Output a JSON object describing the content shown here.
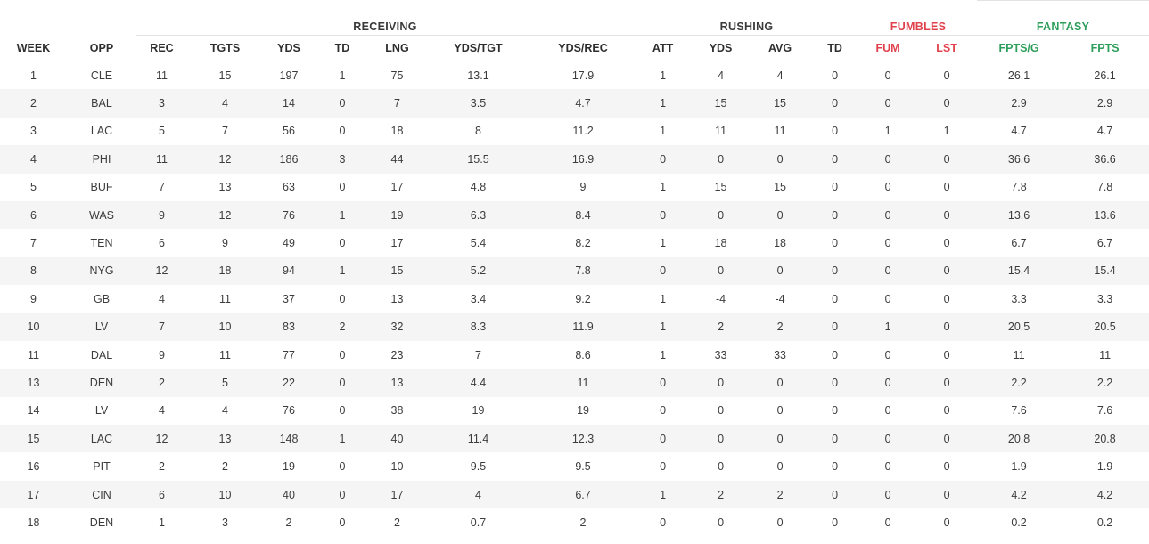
{
  "groups": {
    "receiving": "RECEIVING",
    "rushing": "RUSHING",
    "fumbles": "FUMBLES",
    "fantasy": "FANTASY"
  },
  "colors": {
    "fumbles": "#e0424d",
    "fantasy": "#2e9e5b",
    "text": "#3a3a3a",
    "stripe": "#f5f5f5"
  },
  "columns": [
    "WEEK",
    "OPP",
    "REC",
    "TGTS",
    "YDS",
    "TD",
    "LNG",
    "YDS/TGT",
    "YDS/REC",
    "ATT",
    "YDS",
    "AVG",
    "TD",
    "FUM",
    "LST",
    "FPTS/G",
    "FPTS"
  ],
  "rows": [
    [
      "1",
      "CLE",
      "11",
      "15",
      "197",
      "1",
      "75",
      "13.1",
      "17.9",
      "1",
      "4",
      "4",
      "0",
      "0",
      "0",
      "26.1",
      "26.1"
    ],
    [
      "2",
      "BAL",
      "3",
      "4",
      "14",
      "0",
      "7",
      "3.5",
      "4.7",
      "1",
      "15",
      "15",
      "0",
      "0",
      "0",
      "2.9",
      "2.9"
    ],
    [
      "3",
      "LAC",
      "5",
      "7",
      "56",
      "0",
      "18",
      "8",
      "11.2",
      "1",
      "11",
      "11",
      "0",
      "1",
      "1",
      "4.7",
      "4.7"
    ],
    [
      "4",
      "PHI",
      "11",
      "12",
      "186",
      "3",
      "44",
      "15.5",
      "16.9",
      "0",
      "0",
      "0",
      "0",
      "0",
      "0",
      "36.6",
      "36.6"
    ],
    [
      "5",
      "BUF",
      "7",
      "13",
      "63",
      "0",
      "17",
      "4.8",
      "9",
      "1",
      "15",
      "15",
      "0",
      "0",
      "0",
      "7.8",
      "7.8"
    ],
    [
      "6",
      "WAS",
      "9",
      "12",
      "76",
      "1",
      "19",
      "6.3",
      "8.4",
      "0",
      "0",
      "0",
      "0",
      "0",
      "0",
      "13.6",
      "13.6"
    ],
    [
      "7",
      "TEN",
      "6",
      "9",
      "49",
      "0",
      "17",
      "5.4",
      "8.2",
      "1",
      "18",
      "18",
      "0",
      "0",
      "0",
      "6.7",
      "6.7"
    ],
    [
      "8",
      "NYG",
      "12",
      "18",
      "94",
      "1",
      "15",
      "5.2",
      "7.8",
      "0",
      "0",
      "0",
      "0",
      "0",
      "0",
      "15.4",
      "15.4"
    ],
    [
      "9",
      "GB",
      "4",
      "11",
      "37",
      "0",
      "13",
      "3.4",
      "9.2",
      "1",
      "-4",
      "-4",
      "0",
      "0",
      "0",
      "3.3",
      "3.3"
    ],
    [
      "10",
      "LV",
      "7",
      "10",
      "83",
      "2",
      "32",
      "8.3",
      "11.9",
      "1",
      "2",
      "2",
      "0",
      "1",
      "0",
      "20.5",
      "20.5"
    ],
    [
      "11",
      "DAL",
      "9",
      "11",
      "77",
      "0",
      "23",
      "7",
      "8.6",
      "1",
      "33",
      "33",
      "0",
      "0",
      "0",
      "11",
      "11"
    ],
    [
      "13",
      "DEN",
      "2",
      "5",
      "22",
      "0",
      "13",
      "4.4",
      "11",
      "0",
      "0",
      "0",
      "0",
      "0",
      "0",
      "2.2",
      "2.2"
    ],
    [
      "14",
      "LV",
      "4",
      "4",
      "76",
      "0",
      "38",
      "19",
      "19",
      "0",
      "0",
      "0",
      "0",
      "0",
      "0",
      "7.6",
      "7.6"
    ],
    [
      "15",
      "LAC",
      "12",
      "13",
      "148",
      "1",
      "40",
      "11.4",
      "12.3",
      "0",
      "0",
      "0",
      "0",
      "0",
      "0",
      "20.8",
      "20.8"
    ],
    [
      "16",
      "PIT",
      "2",
      "2",
      "19",
      "0",
      "10",
      "9.5",
      "9.5",
      "0",
      "0",
      "0",
      "0",
      "0",
      "0",
      "1.9",
      "1.9"
    ],
    [
      "17",
      "CIN",
      "6",
      "10",
      "40",
      "0",
      "17",
      "4",
      "6.7",
      "1",
      "2",
      "2",
      "0",
      "0",
      "0",
      "4.2",
      "4.2"
    ],
    [
      "18",
      "DEN",
      "1",
      "3",
      "2",
      "0",
      "2",
      "0.7",
      "2",
      "0",
      "0",
      "0",
      "0",
      "0",
      "0",
      "0.2",
      "0.2"
    ]
  ]
}
